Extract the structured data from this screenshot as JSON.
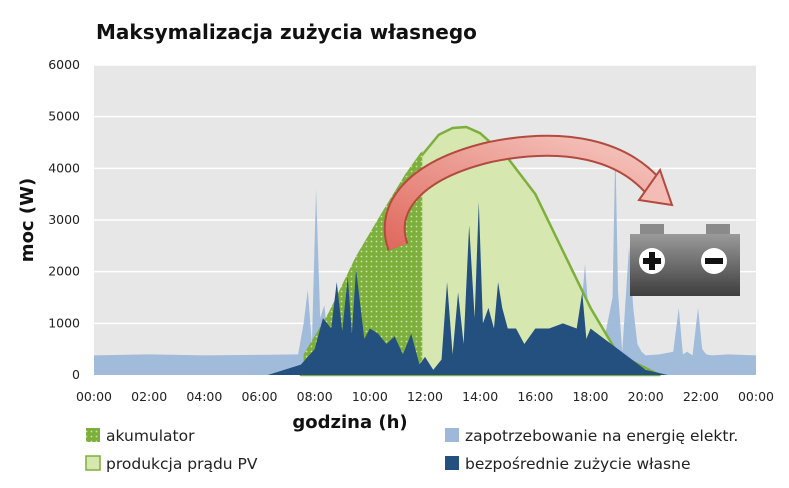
{
  "chart_data": {
    "type": "area",
    "title": "Maksymalizacja zużycia własnego",
    "xlabel": "godzina (h)",
    "ylabel": "moc (W)",
    "ylim": [
      0,
      6000
    ],
    "xlim": [
      0,
      24
    ],
    "y_ticks": [
      0,
      1000,
      2000,
      3000,
      4000,
      5000,
      6000
    ],
    "x_tick_labels": [
      "00:00",
      "02:00",
      "04:00",
      "06:00",
      "08:00",
      "10:00",
      "12:00",
      "14:00",
      "16:00",
      "18:00",
      "20:00",
      "22:00",
      "00:00"
    ],
    "grid": "horizontal",
    "legend_position": "bottom",
    "series": [
      {
        "name": "akumulator",
        "color": "#7daf3c",
        "x": [
          7.6,
          8.5,
          9.5,
          10.5,
          11.3,
          11.9
        ],
        "y": [
          400,
          1200,
          2300,
          3200,
          3900,
          4350
        ]
      },
      {
        "name": "produkcja prądu PV",
        "color": "#d6e7b0",
        "x": [
          7.5,
          8.5,
          9.5,
          10.5,
          11.5,
          12.5,
          13.0,
          13.5,
          14.0,
          15.0,
          16.0,
          17.0,
          18.0,
          19.0,
          20.5
        ],
        "y": [
          0,
          700,
          1900,
          3000,
          4000,
          4650,
          4780,
          4800,
          4680,
          4200,
          3500,
          2400,
          1300,
          400,
          0
        ]
      },
      {
        "name": "zapotrzebowanie na energię elektr.",
        "color": "#9db8d9",
        "x": [
          0,
          2,
          4,
          6,
          7.4,
          7.6,
          7.75,
          7.9,
          8.05,
          8.2,
          8.35,
          8.5,
          9.0,
          9.5,
          10.0,
          11.0,
          12.0,
          13.0,
          14.0,
          15.0,
          16.0,
          17.0,
          17.6,
          17.8,
          18.0,
          18.5,
          18.8,
          18.9,
          19.0,
          19.15,
          19.4,
          19.55,
          19.7,
          19.85,
          20.0,
          20.5,
          21.0,
          21.2,
          21.35,
          21.5,
          21.7,
          21.9,
          22.05,
          22.2,
          22.4,
          23.0,
          24.0
        ],
        "y": [
          380,
          400,
          380,
          390,
          400,
          1000,
          1650,
          600,
          3600,
          1100,
          1350,
          600,
          450,
          400,
          380,
          300,
          300,
          250,
          300,
          300,
          350,
          400,
          800,
          2150,
          700,
          700,
          1500,
          4400,
          1600,
          450,
          2500,
          1300,
          600,
          450,
          380,
          400,
          450,
          1300,
          400,
          450,
          380,
          1300,
          500,
          400,
          380,
          400,
          380
        ]
      },
      {
        "name": "bezpośrednie zużycie własne",
        "color": "#23507e",
        "x": [
          6.3,
          7.5,
          8.0,
          8.3,
          8.6,
          8.8,
          9.0,
          9.2,
          9.35,
          9.5,
          9.8,
          10.0,
          10.3,
          10.6,
          10.9,
          11.2,
          11.5,
          11.8,
          12.0,
          12.3,
          12.6,
          12.8,
          13.0,
          13.2,
          13.4,
          13.6,
          13.8,
          13.95,
          14.1,
          14.3,
          14.5,
          14.65,
          14.8,
          15.0,
          15.3,
          15.6,
          16.0,
          16.5,
          17.0,
          17.5,
          17.7,
          17.85,
          18.0,
          18.5,
          19.0,
          20.0,
          20.8
        ],
        "y": [
          0,
          200,
          500,
          1100,
          900,
          1800,
          850,
          1900,
          800,
          2050,
          700,
          900,
          800,
          600,
          750,
          400,
          800,
          200,
          350,
          100,
          300,
          1800,
          400,
          1600,
          600,
          2900,
          1100,
          3350,
          1000,
          1300,
          900,
          1800,
          1300,
          900,
          900,
          600,
          900,
          900,
          1000,
          900,
          1600,
          700,
          900,
          700,
          500,
          100,
          0
        ]
      }
    ]
  }
}
